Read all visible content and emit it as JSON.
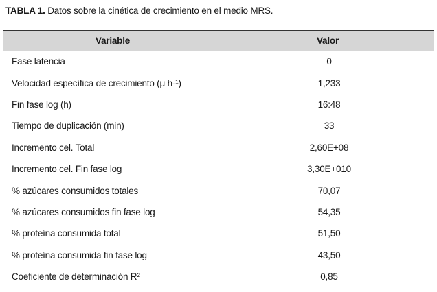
{
  "caption": {
    "label": "TABLA 1.",
    "text": " Datos sobre la cinética de crecimiento en el medio MRS."
  },
  "table": {
    "headers": [
      "Variable",
      "Valor"
    ],
    "rows": [
      {
        "variable": "Fase latencia",
        "valor": "0"
      },
      {
        "variable": "Velocidad específica de crecimiento (μ h-¹)",
        "valor": "1,233"
      },
      {
        "variable": "Fin fase log (h)",
        "valor": "16:48"
      },
      {
        "variable": "Tiempo de duplicación (min)",
        "valor": "33"
      },
      {
        "variable": "Incremento cel. Total",
        "valor": "2,60E+08"
      },
      {
        "variable": "Incremento cel. Fin fase log",
        "valor": "3,30E+010"
      },
      {
        "variable": "% azúcares consumidos totales",
        "valor": "70,07"
      },
      {
        "variable": "% azúcares consumidos fin fase log",
        "valor": "54,35"
      },
      {
        "variable": "% proteína consumida total",
        "valor": "51,50"
      },
      {
        "variable": "% proteína consumida fin fase log",
        "valor": "43,50"
      },
      {
        "variable": "Coeficiente de determinación R²",
        "valor": "0,85"
      }
    ]
  }
}
